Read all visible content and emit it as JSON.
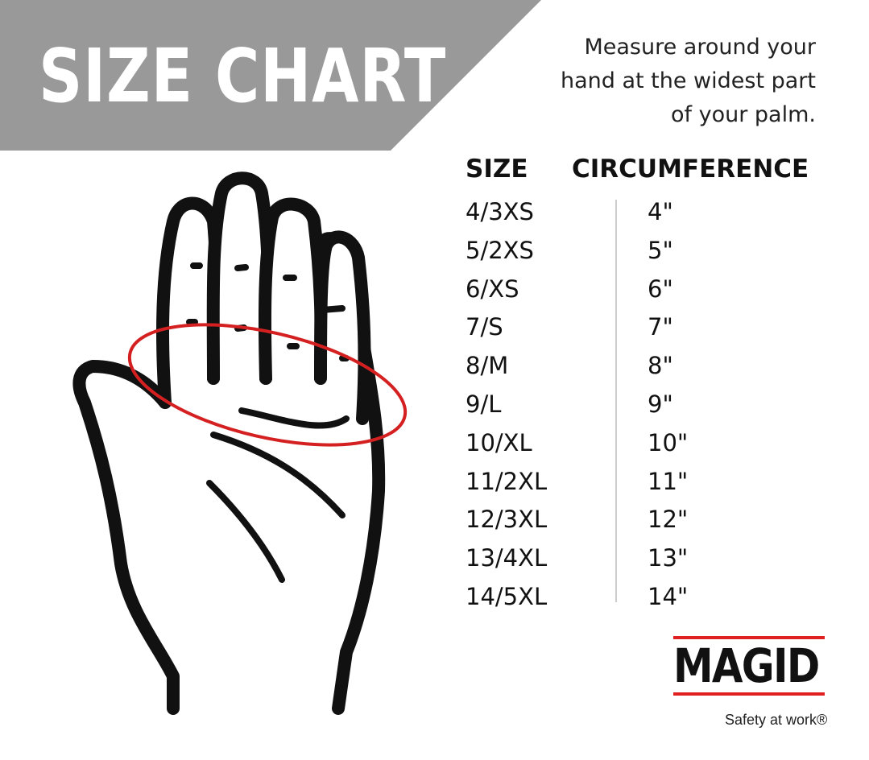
{
  "title": "SIZE CHART",
  "instructions": [
    "Measure around your",
    "hand at the widest part",
    "of your palm."
  ],
  "table": {
    "headers": {
      "size": "SIZE",
      "circumference": "CIRCUMFERENCE"
    },
    "rows": [
      {
        "size": "4/3XS",
        "circumference": "4\""
      },
      {
        "size": "5/2XS",
        "circumference": "5\""
      },
      {
        "size": "6/XS",
        "circumference": "6\""
      },
      {
        "size": "7/S",
        "circumference": "7\""
      },
      {
        "size": "8/M",
        "circumference": "8\""
      },
      {
        "size": "9/L",
        "circumference": "9\""
      },
      {
        "size": "10/XL",
        "circumference": "10\""
      },
      {
        "size": "11/2XL",
        "circumference": "11\""
      },
      {
        "size": "12/3XL",
        "circumference": "12\""
      },
      {
        "size": "13/4XL",
        "circumference": "13\""
      },
      {
        "size": "14/5XL",
        "circumference": "14\""
      }
    ]
  },
  "brand": {
    "name": "MAGID",
    "tagline": "Safety at work®",
    "accent": "#e02020"
  },
  "colors": {
    "banner": "#999999",
    "measure_line": "#d42020"
  }
}
